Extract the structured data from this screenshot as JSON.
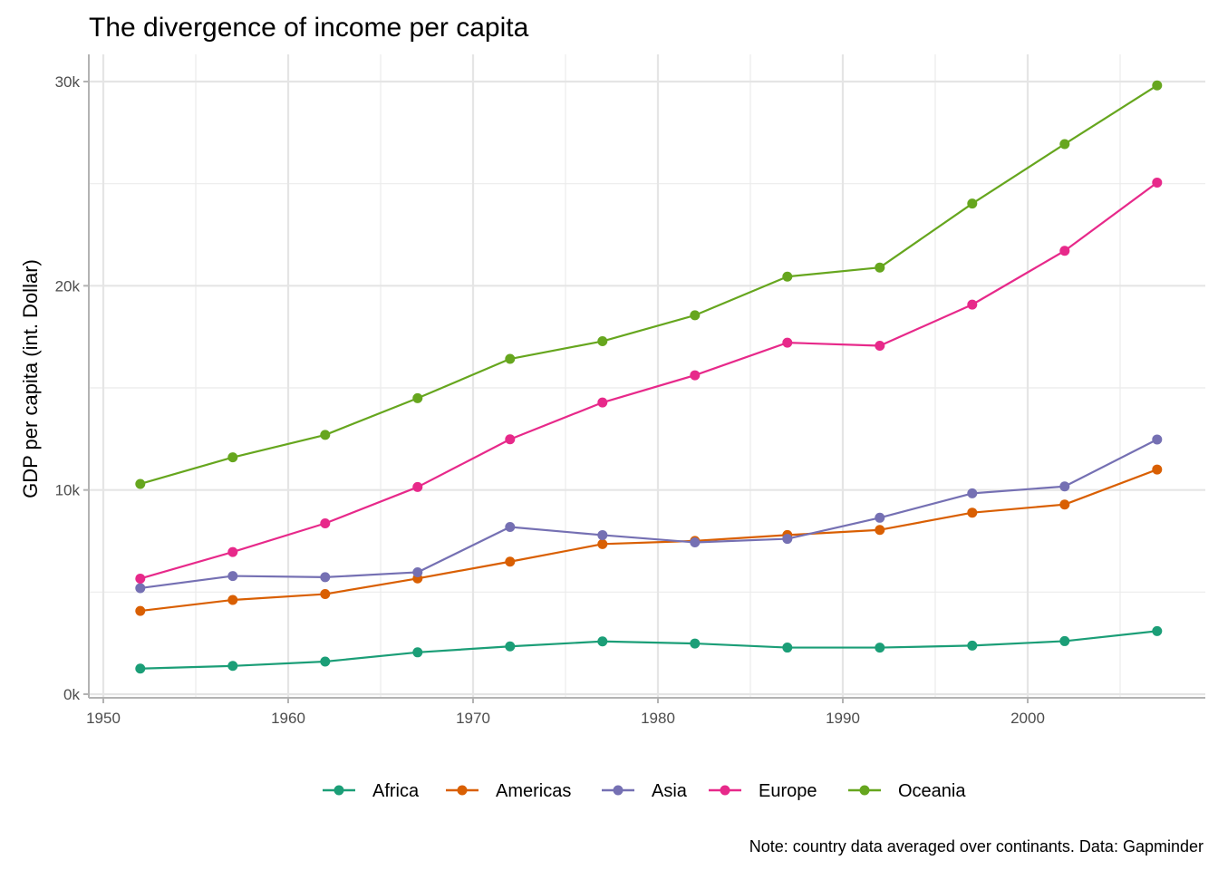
{
  "chart_data": {
    "type": "line",
    "title": "The divergence of income per capita",
    "xlabel": "",
    "ylabel": "GDP per capita (int. Dollar)",
    "caption": "Note: country data averaged over continants. Data: Gapminder",
    "xlim": [
      1949,
      2009
    ],
    "ylim": [
      0,
      31200
    ],
    "x_ticks": [
      1950,
      1960,
      1970,
      1980,
      1990,
      2000
    ],
    "x_tick_labels": [
      "1950",
      "1960",
      "1970",
      "1980",
      "1990",
      "2000"
    ],
    "y_ticks": [
      0,
      10000,
      20000,
      30000
    ],
    "y_tick_labels": [
      "0k",
      "10k",
      "20k",
      "30k"
    ],
    "grid": true,
    "legend_position": "bottom",
    "x": [
      1952,
      1957,
      1962,
      1967,
      1972,
      1977,
      1982,
      1987,
      1992,
      1997,
      2002,
      2007
    ],
    "series": [
      {
        "name": "Africa",
        "color": "#1b9e77",
        "values": [
          1253,
          1385,
          1598,
          2050,
          2340,
          2586,
          2482,
          2283,
          2282,
          2379,
          2599,
          3089
        ]
      },
      {
        "name": "Americas",
        "color": "#d95f02",
        "values": [
          4079,
          4616,
          4902,
          5668,
          6491,
          7352,
          7507,
          7793,
          8045,
          8889,
          9288,
          11003
        ]
      },
      {
        "name": "Asia",
        "color": "#7570b3",
        "values": [
          5195,
          5788,
          5729,
          5971,
          8187,
          7791,
          7434,
          7608,
          8640,
          9834,
          10174,
          12473
        ]
      },
      {
        "name": "Europe",
        "color": "#e7298a",
        "values": [
          5661,
          6963,
          8365,
          10144,
          12480,
          14284,
          15618,
          17214,
          17062,
          19077,
          21712,
          25054
        ]
      },
      {
        "name": "Oceania",
        "color": "#66a61e",
        "values": [
          10298,
          11599,
          12696,
          14495,
          16418,
          17284,
          18555,
          20448,
          20894,
          24024,
          26939,
          29810
        ]
      }
    ]
  }
}
